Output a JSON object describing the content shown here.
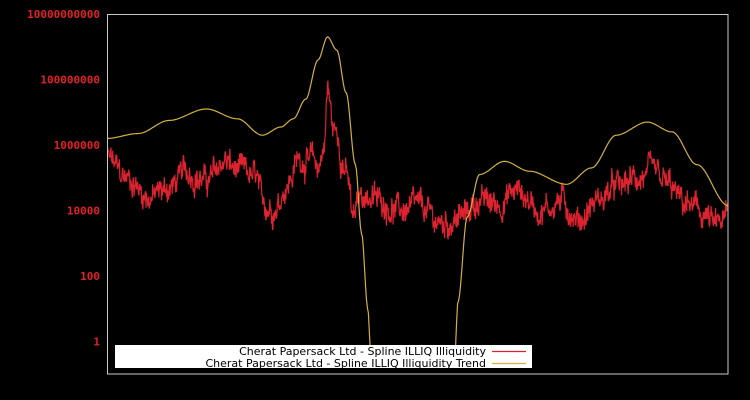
{
  "chart_data": {
    "type": "line",
    "title": "",
    "xlabel": "",
    "ylabel": "",
    "yscale": "log",
    "ylim": [
      0.4,
      10000000000.0
    ],
    "yticks": [
      {
        "label": "10000000000",
        "value": 10000000000.0
      },
      {
        "label": "100000000",
        "value": 100000000.0
      },
      {
        "label": "1000000",
        "value": 1000000.0
      },
      {
        "label": "10000",
        "value": 10000.0
      },
      {
        "label": "100",
        "value": 100
      },
      {
        "label": "1",
        "value": 1
      }
    ],
    "grid": false,
    "legend_position": "bottom-center-inside",
    "x_normalized_range": [
      0,
      1
    ],
    "series": [
      {
        "name": "Cherat Papersack Ltd - Spline ILLIQ Illiquidity",
        "color": "#dd2230",
        "note": "noisy daily series; anchors give approximate log10 level at normalized x",
        "anchors": [
          [
            0.0,
            5.6
          ],
          [
            0.03,
            5.0
          ],
          [
            0.07,
            4.4
          ],
          [
            0.1,
            4.7
          ],
          [
            0.13,
            5.2
          ],
          [
            0.16,
            4.9
          ],
          [
            0.19,
            5.5
          ],
          [
            0.21,
            5.2
          ],
          [
            0.24,
            5.0
          ],
          [
            0.25,
            4.2
          ],
          [
            0.27,
            4.1
          ],
          [
            0.29,
            4.8
          ],
          [
            0.31,
            5.6
          ],
          [
            0.33,
            5.5
          ],
          [
            0.34,
            5.3
          ],
          [
            0.35,
            6.0
          ],
          [
            0.355,
            7.7
          ],
          [
            0.365,
            6.5
          ],
          [
            0.37,
            6.3
          ],
          [
            0.38,
            5.5
          ],
          [
            0.39,
            4.8
          ],
          [
            0.395,
            3.7
          ],
          [
            0.41,
            4.5
          ],
          [
            0.44,
            4.3
          ],
          [
            0.47,
            4.0
          ],
          [
            0.5,
            4.1
          ],
          [
            0.54,
            3.6
          ],
          [
            0.57,
            3.8
          ],
          [
            0.6,
            4.3
          ],
          [
            0.63,
            4.2
          ],
          [
            0.66,
            4.6
          ],
          [
            0.7,
            4.0
          ],
          [
            0.73,
            4.3
          ],
          [
            0.76,
            3.7
          ],
          [
            0.79,
            4.3
          ],
          [
            0.82,
            4.7
          ],
          [
            0.86,
            5.0
          ],
          [
            0.88,
            5.1
          ],
          [
            0.9,
            4.8
          ],
          [
            0.93,
            4.2
          ],
          [
            0.96,
            3.9
          ],
          [
            0.98,
            3.5
          ],
          [
            1.0,
            3.8
          ]
        ]
      },
      {
        "name": "Cherat Papersack Ltd - Spline ILLIQ Illiquidity Trend",
        "color": "#d4b040",
        "note": "smooth spline; values are log10 at normalized x",
        "anchors": [
          [
            0.0,
            6.2
          ],
          [
            0.05,
            6.35
          ],
          [
            0.1,
            6.75
          ],
          [
            0.16,
            7.1
          ],
          [
            0.21,
            6.8
          ],
          [
            0.25,
            6.3
          ],
          [
            0.28,
            6.55
          ],
          [
            0.3,
            6.8
          ],
          [
            0.32,
            7.4
          ],
          [
            0.34,
            8.6
          ],
          [
            0.355,
            9.3
          ],
          [
            0.37,
            8.9
          ],
          [
            0.385,
            7.6
          ],
          [
            0.4,
            5.4
          ],
          [
            0.41,
            3.3
          ],
          [
            0.42,
            1.0
          ],
          [
            0.425,
            -0.4
          ],
          [
            0.56,
            -0.4
          ],
          [
            0.565,
            1.2
          ],
          [
            0.58,
            3.8
          ],
          [
            0.6,
            5.1
          ],
          [
            0.64,
            5.5
          ],
          [
            0.68,
            5.2
          ],
          [
            0.74,
            4.8
          ],
          [
            0.78,
            5.3
          ],
          [
            0.82,
            6.3
          ],
          [
            0.87,
            6.7
          ],
          [
            0.91,
            6.4
          ],
          [
            0.95,
            5.4
          ],
          [
            1.0,
            4.15
          ]
        ]
      }
    ]
  },
  "legend": {
    "items": [
      {
        "label": "Cherat Papersack Ltd - Spline ILLIQ Illiquidity",
        "color": "#dd2230"
      },
      {
        "label": "Cherat Papersack Ltd - Spline ILLIQ Illiquidity Trend",
        "color": "#d4b040"
      }
    ]
  },
  "colors": {
    "background": "#000000",
    "axis": "#c8c8c8",
    "tick_label": "#e0202a",
    "legend_bg": "#ffffff"
  }
}
